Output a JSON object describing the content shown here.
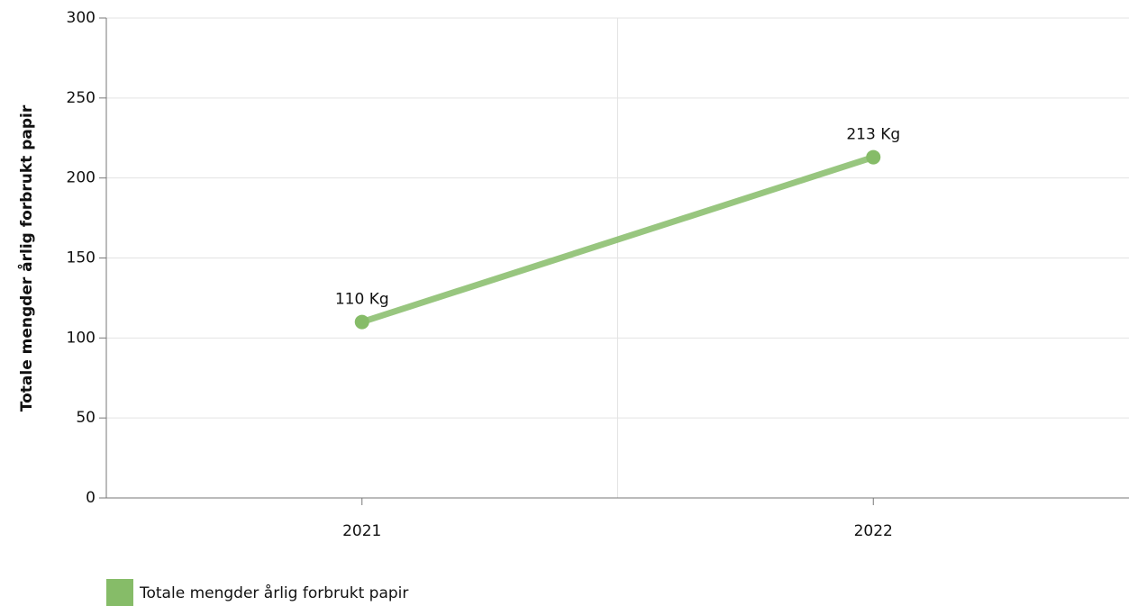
{
  "chart_data": {
    "type": "line",
    "y_axis_label": "Totale mengder årlig forbrukt papir",
    "categories": [
      "2021",
      "2022"
    ],
    "series": [
      {
        "name": "Totale mengder årlig forbrukt papir",
        "color": "#86bc68",
        "values": [
          110,
          213
        ],
        "value_labels": [
          "110 Kg",
          "213 Kg"
        ]
      }
    ],
    "ylim": [
      0,
      300
    ],
    "yticks": [
      0,
      50,
      100,
      150,
      200,
      250,
      300
    ],
    "grid": true,
    "legend": "bottom-left"
  }
}
